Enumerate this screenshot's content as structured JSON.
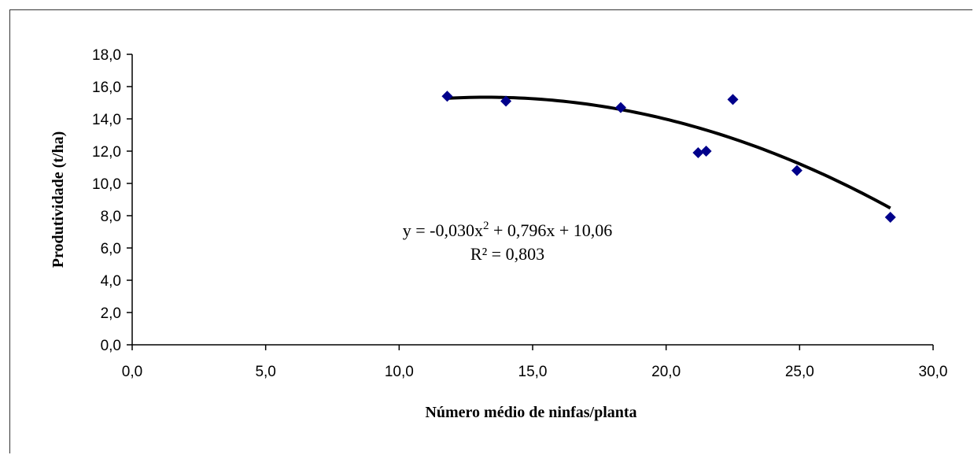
{
  "chart_data": {
    "type": "scatter",
    "xlabel": "Número médio de ninfas/planta",
    "ylabel": "Produtividade (t/ha)",
    "xlim": [
      0,
      30
    ],
    "ylim": [
      0,
      18
    ],
    "x_ticks": [
      "0,0",
      "5,0",
      "10,0",
      "15,0",
      "20,0",
      "25,0",
      "30,0"
    ],
    "y_ticks": [
      "0,0",
      "2,0",
      "4,0",
      "6,0",
      "8,0",
      "10,0",
      "12,0",
      "14,0",
      "16,0",
      "18,0"
    ],
    "grid": false,
    "series": [
      {
        "marker": "diamond",
        "color": "#00008B",
        "x": [
          11.8,
          14.0,
          18.3,
          21.2,
          21.5,
          22.5,
          24.9,
          28.4
        ],
        "y": [
          15.4,
          15.1,
          14.7,
          11.9,
          12.0,
          15.2,
          10.8,
          7.9
        ]
      }
    ],
    "trendline": {
      "type": "polynomial",
      "coefficients": {
        "a": -0.03,
        "b": 0.796,
        "c": 10.06
      },
      "x_range": [
        11.8,
        28.4
      ],
      "color": "#000000"
    },
    "annotations": {
      "equation_prefix": "y = -0,030x",
      "equation_sup": "2",
      "equation_suffix": " + 0,796x + 10,06",
      "r_squared": "R² = 0,803"
    }
  }
}
